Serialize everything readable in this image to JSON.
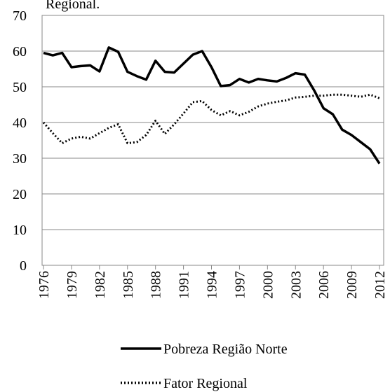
{
  "chart_data": {
    "type": "line",
    "title": "Regional.",
    "x": [
      1976,
      1977,
      1978,
      1979,
      1980,
      1981,
      1982,
      1983,
      1984,
      1985,
      1986,
      1987,
      1988,
      1989,
      1990,
      1991,
      1992,
      1993,
      1994,
      1995,
      1996,
      1997,
      1998,
      1999,
      2000,
      2001,
      2002,
      2003,
      2004,
      2005,
      2006,
      2007,
      2008,
      2009,
      2010,
      2011,
      2012
    ],
    "series": [
      {
        "name": "Pobreza Região Norte",
        "color": "#000000",
        "dash": "solid",
        "values": [
          59.5,
          58.8,
          59.5,
          55.5,
          55.8,
          56,
          54.3,
          61,
          59.8,
          54.2,
          53,
          52,
          57.3,
          54.2,
          54,
          56.5,
          59,
          60,
          55.5,
          50.2,
          50.5,
          52.2,
          51.2,
          52.2,
          51.8,
          51.5,
          52.5,
          53.8,
          53.4,
          49,
          44,
          42.3,
          38,
          36.5,
          34.5,
          32.5,
          28.5
        ]
      },
      {
        "name": "Fator Regional",
        "color": "#000000",
        "dash": "dotted",
        "values": [
          40,
          37,
          34.2,
          35.5,
          36,
          35.5,
          37,
          38.5,
          39.5,
          34.2,
          34.5,
          36.5,
          40.5,
          36.8,
          39.5,
          42.5,
          45.7,
          46,
          43.5,
          42,
          43.2,
          42,
          43,
          44.5,
          45.3,
          45.8,
          46.2,
          47,
          47.2,
          47.5,
          47.5,
          47.8,
          47.8,
          47.5,
          47.2,
          47.8,
          46.8
        ]
      }
    ],
    "xlim": [
      1976,
      2012
    ],
    "xticks": [
      1976,
      1979,
      1982,
      1985,
      1988,
      1991,
      1994,
      1997,
      2000,
      2003,
      2006,
      2009,
      2012
    ],
    "ylim": [
      0,
      70
    ],
    "yticks": [
      0,
      10,
      20,
      30,
      40,
      50,
      60,
      70
    ],
    "grid": true
  }
}
